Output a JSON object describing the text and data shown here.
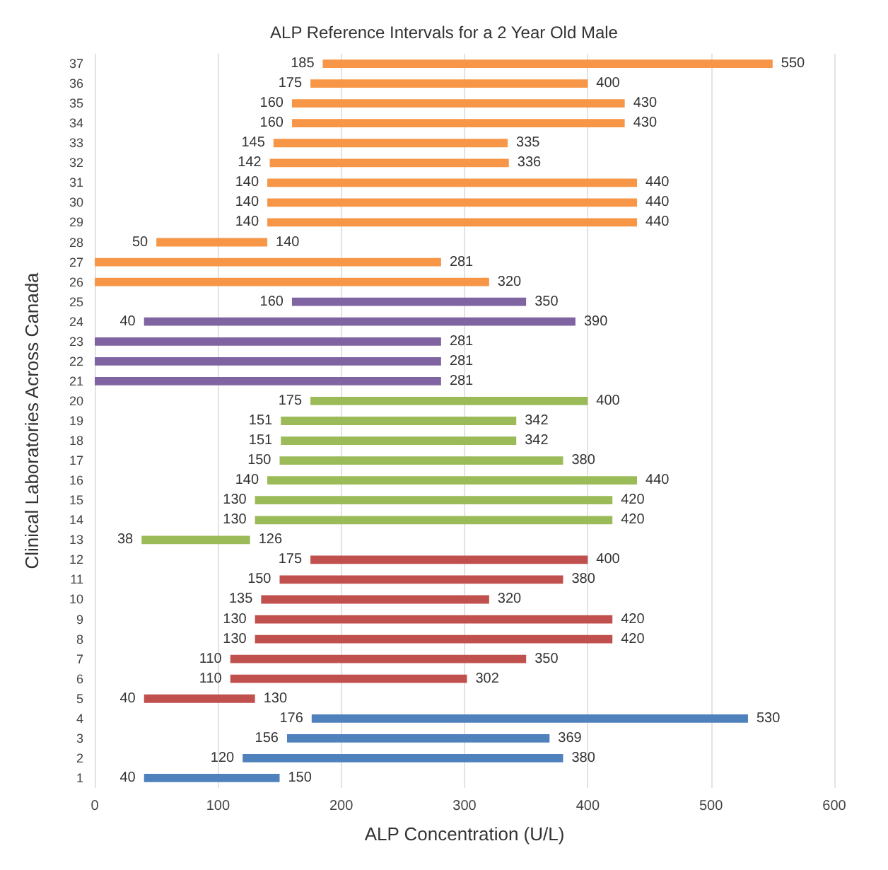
{
  "chart_data": {
    "type": "bar",
    "orientation": "horizontal",
    "title": "ALP Reference Intervals for a 2 Year Old Male",
    "xlabel": "ALP Concentration (U/L)",
    "ylabel": "Clinical Laboratories Across Canada",
    "categories": [
      "37",
      "36",
      "35",
      "34",
      "33",
      "32",
      "31",
      "30",
      "29",
      "28",
      "27",
      "26",
      "25",
      "24",
      "23",
      "22",
      "21",
      "20",
      "19",
      "18",
      "17",
      "16",
      "15",
      "14",
      "13",
      "12",
      "11",
      "10",
      "9",
      "8",
      "7",
      "6",
      "5",
      "4",
      "3",
      "2",
      "1"
    ],
    "base": [
      185,
      175,
      160,
      160,
      145,
      142,
      140,
      140,
      140,
      50,
      0,
      0,
      160,
      40,
      0,
      0,
      0,
      175,
      151,
      151,
      150,
      140,
      130,
      130,
      38,
      175,
      150,
      135,
      130,
      130,
      110,
      110,
      40,
      176,
      156,
      120,
      40
    ],
    "values": [
      365,
      225,
      270,
      270,
      190,
      194,
      300,
      300,
      300,
      90,
      281,
      320,
      190,
      350,
      281,
      281,
      281,
      225,
      191,
      191,
      230,
      300,
      290,
      290,
      88,
      225,
      230,
      185,
      290,
      290,
      240,
      192,
      90,
      354,
      213,
      260,
      110
    ],
    "value_labels": [
      "550",
      "400",
      "430",
      "430",
      "335",
      "336",
      "440",
      "440",
      "440",
      "140",
      "281",
      "320",
      "350",
      "390",
      "281",
      "281",
      "281",
      "400",
      "342",
      "342",
      "380",
      "440",
      "420",
      "420",
      "126",
      "400",
      "380",
      "320",
      "420",
      "420",
      "350",
      "302",
      "130",
      "530",
      "369",
      "380",
      "150"
    ],
    "colors": [
      "#f79646",
      "#f79646",
      "#f79646",
      "#f79646",
      "#f79646",
      "#f79646",
      "#f79646",
      "#f79646",
      "#f79646",
      "#f79646",
      "#f79646",
      "#f79646",
      "#8064a2",
      "#8064a2",
      "#8064a2",
      "#8064a2",
      "#8064a2",
      "#9bbb59",
      "#9bbb59",
      "#9bbb59",
      "#9bbb59",
      "#9bbb59",
      "#9bbb59",
      "#9bbb59",
      "#9bbb59",
      "#c0504d",
      "#c0504d",
      "#c0504d",
      "#c0504d",
      "#c0504d",
      "#c0504d",
      "#c0504d",
      "#c0504d",
      "#4f81bd",
      "#4f81bd",
      "#4f81bd",
      "#4f81bd"
    ],
    "annotations": [
      {
        "text": "185",
        "x": 185,
        "y": "37"
      },
      {
        "text": "175",
        "x": 175,
        "y": "36"
      },
      {
        "text": "160",
        "x": 160,
        "y": "35"
      },
      {
        "text": "160",
        "x": 160,
        "y": "34"
      },
      {
        "text": "145",
        "x": 145,
        "y": "33"
      },
      {
        "text": "142",
        "x": 142,
        "y": "32"
      },
      {
        "text": "140",
        "x": 140,
        "y": "31"
      },
      {
        "text": "140",
        "x": 140,
        "y": "30"
      },
      {
        "text": "140",
        "x": 140,
        "y": "29"
      },
      {
        "text": "50",
        "x": 50,
        "y": "28"
      },
      {
        "text": "160",
        "x": 160,
        "y": "25"
      },
      {
        "text": "40",
        "x": 40,
        "y": "24"
      },
      {
        "text": "175",
        "x": 175,
        "y": "20"
      },
      {
        "text": "151",
        "x": 151,
        "y": "19"
      },
      {
        "text": "151",
        "x": 151,
        "y": "18"
      },
      {
        "text": "150",
        "x": 150,
        "y": "17"
      },
      {
        "text": "140",
        "x": 140,
        "y": "16"
      },
      {
        "text": "130",
        "x": 130,
        "y": "15"
      },
      {
        "text": "130",
        "x": 130,
        "y": "14"
      },
      {
        "text": "38",
        "x": 38,
        "y": "13"
      },
      {
        "text": "175",
        "x": 175,
        "y": "12"
      },
      {
        "text": "150",
        "x": 150,
        "y": "11"
      },
      {
        "text": "135",
        "x": 135,
        "y": "10"
      },
      {
        "text": "130",
        "x": 130,
        "y": "9"
      },
      {
        "text": "130",
        "x": 130,
        "y": "8"
      },
      {
        "text": "110",
        "x": 110,
        "y": "7"
      },
      {
        "text": "110",
        "x": 110,
        "y": "6"
      },
      {
        "text": "40",
        "x": 40,
        "y": "5"
      },
      {
        "text": "176",
        "x": 176,
        "y": "4"
      },
      {
        "text": "156",
        "x": 156,
        "y": "3"
      },
      {
        "text": "120",
        "x": 120,
        "y": "2"
      },
      {
        "text": "40",
        "x": 40,
        "y": "1"
      }
    ],
    "xlim": [
      0,
      600
    ],
    "xticks": [
      0,
      100,
      200,
      300,
      400,
      500,
      600
    ],
    "grid": "x"
  }
}
